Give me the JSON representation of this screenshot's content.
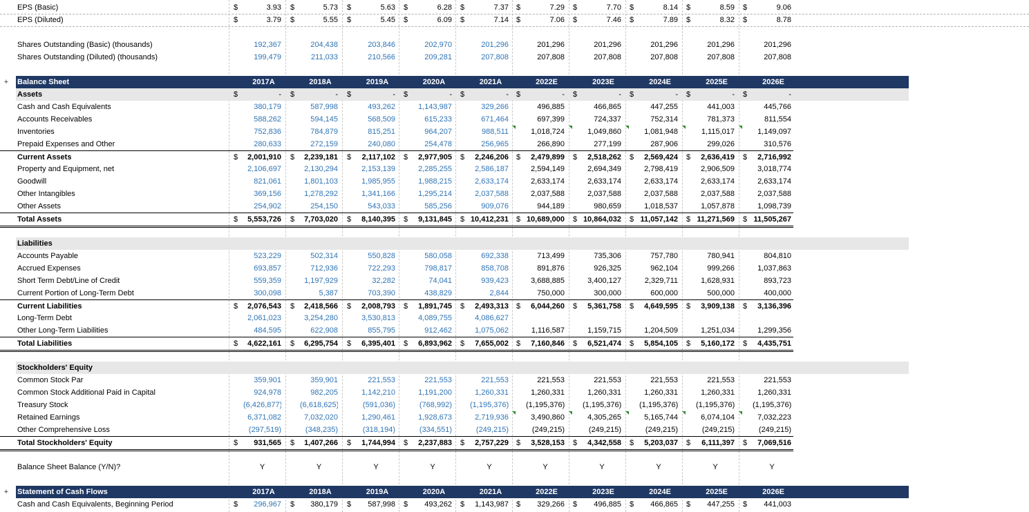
{
  "years": [
    "2017A",
    "2018A",
    "2019A",
    "2020A",
    "2021A",
    "2022E",
    "2023E",
    "2024E",
    "2025E",
    "2026E"
  ],
  "eps": {
    "basic_label": "EPS (Basic)",
    "basic": [
      "3.93",
      "5.73",
      "5.63",
      "6.28",
      "7.37",
      "7.29",
      "7.70",
      "8.14",
      "8.59",
      "9.06"
    ],
    "diluted_label": "EPS (Diluted)",
    "diluted": [
      "3.79",
      "5.55",
      "5.45",
      "6.09",
      "7.14",
      "7.06",
      "7.46",
      "7.89",
      "8.32",
      "8.78"
    ]
  },
  "shares": {
    "basic_label": "Shares Outstanding (Basic) (thousands)",
    "basic": [
      "192,367",
      "204,438",
      "203,846",
      "202,970",
      "201,296",
      "201,296",
      "201,296",
      "201,296",
      "201,296",
      "201,296"
    ],
    "diluted_label": "Shares Outstanding (Diluted) (thousands)",
    "diluted": [
      "199,479",
      "211,033",
      "210,566",
      "209,281",
      "207,808",
      "207,808",
      "207,808",
      "207,808",
      "207,808",
      "207,808"
    ]
  },
  "balance": {
    "title": "Balance Sheet",
    "assets_label": "Assets",
    "assets_dashes": [
      "-",
      "-",
      "-",
      "-",
      "-",
      "-",
      "-",
      "-",
      "-",
      "-"
    ],
    "rows": [
      {
        "label": "Cash and Cash Equivalents",
        "values": [
          "380,179",
          "587,998",
          "493,262",
          "1,143,987",
          "329,266",
          "496,885",
          "466,865",
          "447,255",
          "441,003",
          "445,766"
        ]
      },
      {
        "label": "Accounts Receivables",
        "values": [
          "588,262",
          "594,145",
          "568,509",
          "615,233",
          "671,464",
          "697,399",
          "724,337",
          "752,314",
          "781,373",
          "811,554"
        ]
      },
      {
        "label": "Inventories",
        "values": [
          "752,836",
          "784,879",
          "815,251",
          "964,207",
          "988,511",
          "1,018,724",
          "1,049,860",
          "1,081,948",
          "1,115,017",
          "1,149,097"
        ]
      },
      {
        "label": "Prepaid Expenses and Other",
        "values": [
          "280,633",
          "272,159",
          "240,080",
          "254,478",
          "256,965",
          "266,890",
          "277,199",
          "287,906",
          "299,026",
          "310,576"
        ]
      }
    ],
    "current_assets": {
      "label": "Current Assets",
      "values": [
        "2,001,910",
        "2,239,181",
        "2,117,102",
        "2,977,905",
        "2,246,206",
        "2,479,899",
        "2,518,262",
        "2,569,424",
        "2,636,419",
        "2,716,992"
      ]
    },
    "rows2": [
      {
        "label": "Property and Equipment, net",
        "values": [
          "2,106,697",
          "2,130,294",
          "2,153,139",
          "2,285,255",
          "2,586,187",
          "2,594,149",
          "2,694,349",
          "2,798,419",
          "2,906,509",
          "3,018,774"
        ]
      },
      {
        "label": "Goodwill",
        "values": [
          "821,061",
          "1,801,103",
          "1,985,955",
          "1,988,215",
          "2,633,174",
          "2,633,174",
          "2,633,174",
          "2,633,174",
          "2,633,174",
          "2,633,174"
        ]
      },
      {
        "label": "Other Intangibles",
        "values": [
          "369,156",
          "1,278,292",
          "1,341,166",
          "1,295,214",
          "2,037,588",
          "2,037,588",
          "2,037,588",
          "2,037,588",
          "2,037,588",
          "2,037,588"
        ]
      },
      {
        "label": "Other Assets",
        "values": [
          "254,902",
          "254,150",
          "543,033",
          "585,256",
          "909,076",
          "944,189",
          "980,659",
          "1,018,537",
          "1,057,878",
          "1,098,739"
        ]
      }
    ],
    "total_assets": {
      "label": "Total Assets",
      "values": [
        "5,553,726",
        "7,703,020",
        "8,140,395",
        "9,131,845",
        "10,412,231",
        "10,689,000",
        "10,864,032",
        "11,057,142",
        "11,271,569",
        "11,505,267"
      ]
    },
    "liabilities_label": "Liabilities",
    "rows3": [
      {
        "label": "Accounts Payable",
        "values": [
          "523,229",
          "502,314",
          "550,828",
          "580,058",
          "692,338",
          "713,499",
          "735,306",
          "757,780",
          "780,941",
          "804,810"
        ]
      },
      {
        "label": "Accrued Expenses",
        "values": [
          "693,857",
          "712,936",
          "722,293",
          "798,817",
          "858,708",
          "891,876",
          "926,325",
          "962,104",
          "999,266",
          "1,037,863"
        ]
      },
      {
        "label": "Short Term Debt/Line of Credit",
        "values": [
          "559,359",
          "1,197,929",
          "32,282",
          "74,041",
          "939,423",
          "3,688,885",
          "3,400,127",
          "2,329,711",
          "1,628,931",
          "893,723"
        ]
      },
      {
        "label": "Current Portion of Long-Term Debt",
        "values": [
          "300,098",
          "5,387",
          "703,390",
          "438,829",
          "2,844",
          "750,000",
          "300,000",
          "600,000",
          "500,000",
          "400,000"
        ]
      }
    ],
    "current_liabilities": {
      "label": "Current Liabilities",
      "values": [
        "2,076,543",
        "2,418,566",
        "2,008,793",
        "1,891,745",
        "2,493,313",
        "6,044,260",
        "5,361,758",
        "4,649,595",
        "3,909,138",
        "3,136,396"
      ]
    },
    "rows4": [
      {
        "label": "Long-Term Debt",
        "values": [
          "2,061,023",
          "3,254,280",
          "3,530,813",
          "4,089,755",
          "4,086,627",
          "",
          "",
          "",
          "",
          ""
        ]
      },
      {
        "label": "Other Long-Term Liabilities",
        "values": [
          "484,595",
          "622,908",
          "855,795",
          "912,462",
          "1,075,062",
          "1,116,587",
          "1,159,715",
          "1,204,509",
          "1,251,034",
          "1,299,356"
        ]
      }
    ],
    "total_liabilities": {
      "label": "Total Liabilities",
      "values": [
        "4,622,161",
        "6,295,754",
        "6,395,401",
        "6,893,962",
        "7,655,002",
        "7,160,846",
        "6,521,474",
        "5,854,105",
        "5,160,172",
        "4,435,751"
      ]
    },
    "equity_label": "Stockholders' Equity",
    "rows5": [
      {
        "label": "Common Stock Par",
        "values": [
          "359,901",
          "359,901",
          "221,553",
          "221,553",
          "221,553",
          "221,553",
          "221,553",
          "221,553",
          "221,553",
          "221,553"
        ]
      },
      {
        "label": "Common Stock Additional Paid in Capital",
        "values": [
          "924,978",
          "982,205",
          "1,142,210",
          "1,191,200",
          "1,260,331",
          "1,260,331",
          "1,260,331",
          "1,260,331",
          "1,260,331",
          "1,260,331"
        ]
      },
      {
        "label": "Treasury Stock",
        "values": [
          "(6,426,877)",
          "(6,618,625)",
          "(591,036)",
          "(768,992)",
          "(1,195,376)",
          "(1,195,376)",
          "(1,195,376)",
          "(1,195,376)",
          "(1,195,376)",
          "(1,195,376)"
        ]
      },
      {
        "label": "Retained Earnings",
        "values": [
          "6,371,082",
          "7,032,020",
          "1,290,461",
          "1,928,673",
          "2,719,936",
          "3,490,860",
          "4,305,265",
          "5,165,744",
          "6,074,104",
          "7,032,223"
        ]
      },
      {
        "label": "Other Comprehensive Loss",
        "values": [
          "(297,519)",
          "(348,235)",
          "(318,194)",
          "(334,551)",
          "(249,215)",
          "(249,215)",
          "(249,215)",
          "(249,215)",
          "(249,215)",
          "(249,215)"
        ]
      }
    ],
    "total_equity": {
      "label": "Total Stockholders' Equity",
      "values": [
        "931,565",
        "1,407,266",
        "1,744,994",
        "2,237,883",
        "2,757,229",
        "3,528,153",
        "4,342,558",
        "5,203,037",
        "6,111,397",
        "7,069,516"
      ]
    },
    "check": {
      "label": "Balance Sheet Balance (Y/N)?",
      "values": [
        "Y",
        "Y",
        "Y",
        "Y",
        "Y",
        "Y",
        "Y",
        "Y",
        "Y",
        "Y"
      ]
    }
  },
  "cashflow": {
    "title": "Statement of Cash Flows",
    "begin": {
      "label": "Cash and Cash Equivalents, Beginning Period",
      "values": [
        "296,967",
        "380,179",
        "587,998",
        "493,262",
        "1,143,987",
        "329,266",
        "496,885",
        "466,865",
        "447,255",
        "441,003"
      ]
    }
  },
  "ui": {
    "expand_symbol": "+",
    "dollar": "$"
  }
}
